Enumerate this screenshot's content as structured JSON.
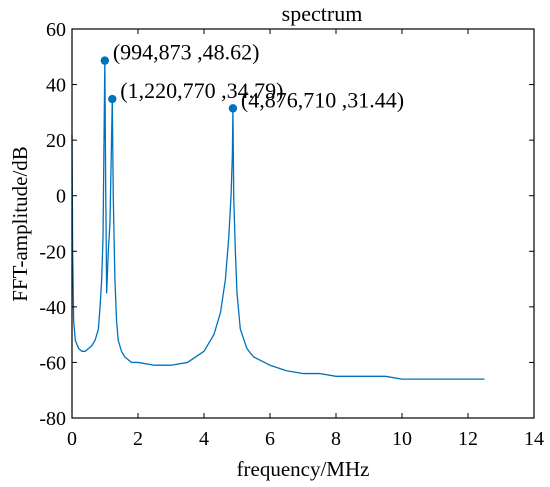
{
  "chart_data": {
    "type": "line",
    "title": "spectrum",
    "xlabel": "frequency/MHz",
    "ylabel": "FFT-amplitude/dB",
    "xlim": [
      0,
      14
    ],
    "ylim": [
      -80,
      60
    ],
    "xticks": [
      0,
      2,
      4,
      6,
      8,
      10,
      12,
      14
    ],
    "yticks": [
      -80,
      -60,
      -40,
      -20,
      0,
      20,
      40,
      60
    ],
    "grid": false,
    "series_color": "#0072BD",
    "series": [
      {
        "x": [
          0,
          0.02,
          0.05,
          0.1,
          0.2,
          0.3,
          0.4,
          0.5,
          0.6,
          0.7,
          0.8,
          0.85,
          0.9,
          0.94,
          0.97,
          0.994873,
          1.02,
          1.05,
          1.1,
          1.15,
          1.19,
          1.22077,
          1.25,
          1.3,
          1.35,
          1.4,
          1.5,
          1.6,
          1.8,
          2.0,
          2.5,
          3.0,
          3.5,
          4.0,
          4.3,
          4.5,
          4.65,
          4.75,
          4.82,
          4.86,
          4.87671,
          4.9,
          4.95,
          5.0,
          5.1,
          5.3,
          5.5,
          6.0,
          6.5,
          7.0,
          7.5,
          8.0,
          8.5,
          9.0,
          9.5,
          10.0,
          10.5,
          11.0,
          11.5,
          12.0,
          12.5
        ],
        "y": [
          22,
          -20,
          -45,
          -52,
          -55,
          -56,
          -56,
          -55,
          -54,
          -52,
          -48,
          -40,
          -30,
          -15,
          20,
          48.62,
          5,
          -35,
          -20,
          -10,
          15,
          34.79,
          0,
          -30,
          -45,
          -52,
          -56,
          -58,
          -60,
          -60,
          -61,
          -61,
          -60,
          -56,
          -50,
          -42,
          -30,
          -15,
          0,
          15,
          31.44,
          0,
          -20,
          -35,
          -48,
          -55,
          -58,
          -61,
          -63,
          -64,
          -64,
          -65,
          -65,
          -65,
          -65,
          -66,
          -66,
          -66,
          -66,
          -66,
          -66
        ]
      }
    ],
    "annotations": [
      {
        "x": 0.994873,
        "y": 48.62,
        "text": "(994,873  ,48.62)"
      },
      {
        "x": 1.22077,
        "y": 34.79,
        "text": "(1,220,770  ,34.79)"
      },
      {
        "x": 4.87671,
        "y": 31.44,
        "text": "(4,876,710  ,31.44)"
      }
    ]
  }
}
